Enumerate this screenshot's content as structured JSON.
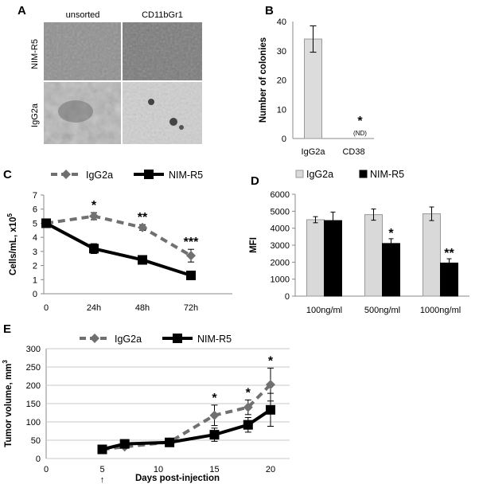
{
  "panels": {
    "A": {
      "label": "A",
      "col_headers": [
        "unsorted",
        "CD11bGr1"
      ],
      "row_headers": [
        "NIM-R5",
        "IgG2a"
      ]
    }
  },
  "chart_data": [
    {
      "panel": "B",
      "type": "bar",
      "ylabel": "Number of colonies",
      "ylim": [
        0,
        40
      ],
      "yticks": [
        0,
        10,
        20,
        30,
        40
      ],
      "categories": [
        "IgG2a",
        "CD38"
      ],
      "values": [
        34,
        0
      ],
      "errors": [
        4.5,
        0
      ],
      "annotations": [
        {
          "category": "CD38",
          "star": "*",
          "note": "(ND)"
        }
      ]
    },
    {
      "panel": "C",
      "type": "line",
      "ylabel": "Cells/mL, x10",
      "ylabel_exp": "5",
      "ylim": [
        0,
        7
      ],
      "yticks": [
        0,
        1,
        2,
        3,
        4,
        5,
        6,
        7
      ],
      "x": [
        "0",
        "24h",
        "48h",
        "72h"
      ],
      "series": [
        {
          "name": "IgG2a",
          "values": [
            5.0,
            5.5,
            4.7,
            2.7
          ],
          "errors": [
            0,
            0.25,
            0.2,
            0.45
          ],
          "color": "#707070",
          "dashed": true,
          "marker": "diamond"
        },
        {
          "name": "NIM-R5",
          "values": [
            5.0,
            3.2,
            2.4,
            1.3
          ],
          "errors": [
            0,
            0.35,
            0.2,
            0.1
          ],
          "color": "#000000",
          "dashed": false,
          "marker": "square"
        }
      ],
      "annotations": [
        {
          "x": "24h",
          "text": "*"
        },
        {
          "x": "48h",
          "text": "**"
        },
        {
          "x": "72h",
          "text": "***"
        }
      ]
    },
    {
      "panel": "D",
      "type": "bar",
      "ylabel": "MFI",
      "ylim": [
        0,
        6000
      ],
      "yticks": [
        0,
        1000,
        2000,
        3000,
        4000,
        5000,
        6000
      ],
      "categories": [
        "100ng/ml",
        "500ng/ml",
        "1000ng/ml"
      ],
      "series": [
        {
          "name": "IgG2a",
          "values": [
            4500,
            4800,
            4850
          ],
          "errors": [
            180,
            330,
            400
          ],
          "color": "#d9d9d9"
        },
        {
          "name": "NIM-R5",
          "values": [
            4450,
            3100,
            1950
          ],
          "errors": [
            500,
            280,
            250
          ],
          "color": "#000000"
        }
      ],
      "annotations": [
        {
          "category": "500ng/ml",
          "text": "*"
        },
        {
          "category": "1000ng/ml",
          "text": "**"
        }
      ]
    },
    {
      "panel": "E",
      "type": "line",
      "ylabel": "Tumor volume, mm",
      "ylabel_exp": "3",
      "xlabel": "Days post-injection",
      "xlim": [
        0,
        20
      ],
      "ylim": [
        0,
        300
      ],
      "xticks": [
        0,
        5,
        10,
        15,
        20
      ],
      "yticks": [
        0,
        50,
        100,
        150,
        200,
        250,
        300
      ],
      "series": [
        {
          "name": "IgG2a",
          "x": [
            5,
            7,
            11,
            15,
            18,
            20
          ],
          "values": [
            25,
            32,
            45,
            118,
            140,
            202
          ],
          "errors": [
            0,
            0,
            8,
            28,
            20,
            45
          ],
          "color": "#707070",
          "dashed": true,
          "marker": "diamond"
        },
        {
          "name": "NIM-R5",
          "x": [
            5,
            7,
            11,
            15,
            18,
            20
          ],
          "values": [
            25,
            40,
            44,
            65,
            92,
            133
          ],
          "errors": [
            0,
            5,
            8,
            18,
            20,
            45
          ],
          "color": "#000000",
          "dashed": false,
          "marker": "square"
        }
      ],
      "annotations": [
        {
          "x": 15,
          "text": "*"
        },
        {
          "x": 18,
          "text": "*"
        },
        {
          "x": 20,
          "text": "*"
        }
      ],
      "arrow_text": "↑"
    }
  ]
}
